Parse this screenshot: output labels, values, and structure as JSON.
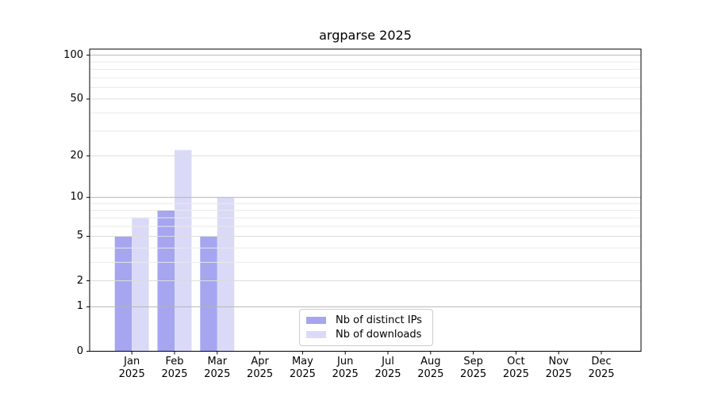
{
  "chart_data": {
    "type": "bar",
    "title": "argparse 2025",
    "categories": [
      "Jan 2025",
      "Feb 2025",
      "Mar 2025",
      "Apr 2025",
      "May 2025",
      "Jun 2025",
      "Jul 2025",
      "Aug 2025",
      "Sep 2025",
      "Oct 2025",
      "Nov 2025",
      "Dec 2025"
    ],
    "series": [
      {
        "name": "Nb of distinct IPs",
        "color": "#a5a5f0",
        "values": [
          5,
          8,
          5,
          0,
          0,
          0,
          0,
          0,
          0,
          0,
          0,
          0
        ]
      },
      {
        "name": "Nb of downloads",
        "color": "#dadaf8",
        "values": [
          7,
          22,
          10,
          0,
          0,
          0,
          0,
          0,
          0,
          0,
          0,
          0
        ]
      }
    ],
    "yscale": "log1p",
    "ylim": [
      0,
      110
    ],
    "yticks": [
      0,
      1,
      2,
      5,
      10,
      20,
      50,
      100
    ],
    "ytick_labels": [
      "0",
      "1",
      "2",
      "5",
      "10",
      "20",
      "50",
      "100"
    ],
    "decade_gridlines": [
      1,
      10,
      100
    ],
    "mid_gridlines": [
      2,
      5,
      20,
      50
    ],
    "minor_gridlines": [
      3,
      4,
      6,
      7,
      8,
      9,
      30,
      40,
      60,
      70,
      80,
      90
    ],
    "grid": true,
    "legend": {
      "entries": [
        "Nb of distinct IPs",
        "Nb of downloads"
      ],
      "position": "lower-center-inside"
    }
  }
}
